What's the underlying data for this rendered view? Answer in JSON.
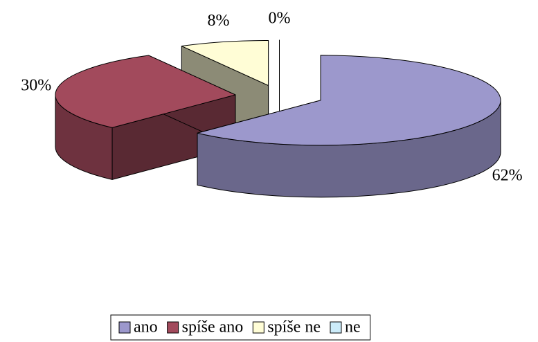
{
  "chart_data": {
    "type": "pie",
    "categories": [
      "ano",
      "spíše ano",
      "spíše ne",
      "ne"
    ],
    "values": [
      62,
      30,
      8,
      0
    ],
    "value_labels": [
      "62%",
      "30%",
      "8%",
      "0%"
    ],
    "colors": [
      "#9c98cc",
      "#a24a5c",
      "#fffdd6",
      "#ccecfa"
    ],
    "legend": "bottom"
  }
}
